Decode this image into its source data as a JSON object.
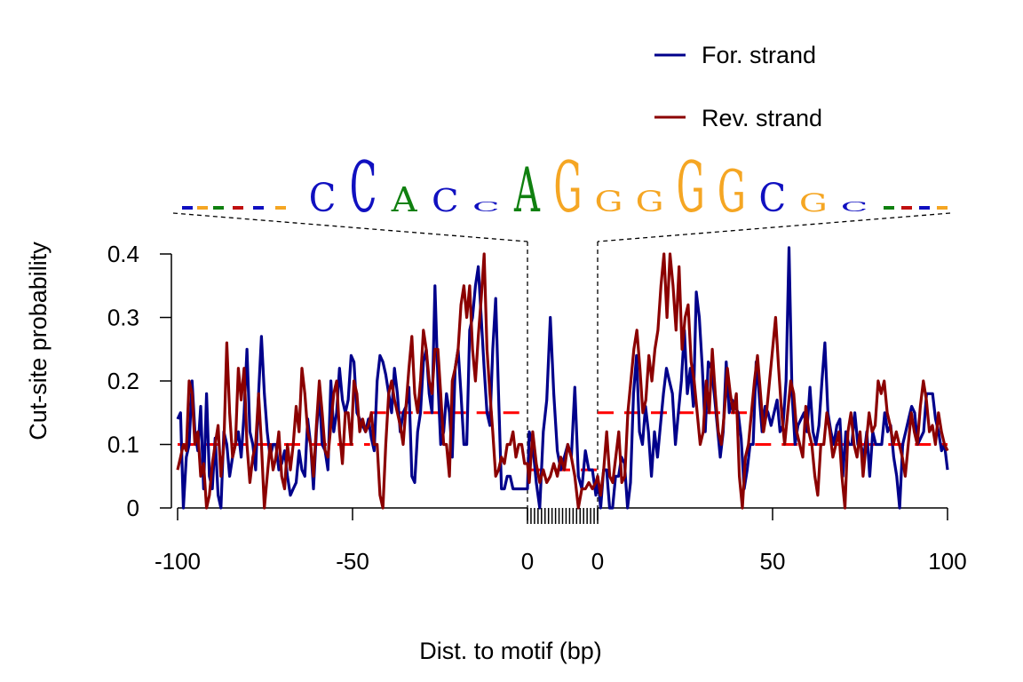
{
  "chart_data": {
    "type": "line",
    "title": "",
    "xlabel": "Dist. to motif (bp)",
    "ylabel": "Cut-site probability",
    "ylim": [
      0,
      0.4
    ],
    "yticks": [
      "0",
      "0.1",
      "0.2",
      "0.3",
      "0.4"
    ],
    "xticks_left": [
      "-100",
      "-50",
      "0"
    ],
    "xticks_right": [
      "0",
      "50",
      "100"
    ],
    "left_flank": [
      -100,
      0
    ],
    "right_flank": [
      0,
      100
    ],
    "motif_length": 20,
    "legend": {
      "position": "top-right",
      "entries": [
        {
          "label": "For. strand",
          "color": "#00008B"
        },
        {
          "label": "Rev. strand",
          "color": "#8B0000"
        }
      ]
    },
    "motif_logo": {
      "columns": [
        {
          "base": "C",
          "color": "#1010C0",
          "height": 0.35
        },
        {
          "base": "C",
          "color": "#1010C0",
          "height": 0.62
        },
        {
          "base": "A",
          "color": "#108010",
          "height": 0.3
        },
        {
          "base": "C",
          "color": "#1010C0",
          "height": 0.28
        },
        {
          "base": "C",
          "color": "#1010C0",
          "height": 0.12
        },
        {
          "base": "A",
          "color": "#108010",
          "height": 0.55
        },
        {
          "base": "G",
          "color": "#F5A623",
          "height": 0.62
        },
        {
          "base": "G",
          "color": "#F5A623",
          "height": 0.25
        },
        {
          "base": "G",
          "color": "#F5A623",
          "height": 0.25
        },
        {
          "base": "G",
          "color": "#F5A623",
          "height": 0.62
        },
        {
          "base": "G",
          "color": "#F5A623",
          "height": 0.52
        },
        {
          "base": "C",
          "color": "#1010C0",
          "height": 0.35
        },
        {
          "base": "G",
          "color": "#F5A623",
          "height": 0.22
        },
        {
          "base": "C",
          "color": "#1010C0",
          "height": 0.12
        }
      ]
    },
    "series": [
      {
        "name": "For. strand",
        "color": "#00008B",
        "left": [
          0.14,
          0.15,
          0.0,
          0.08,
          0.1,
          0.2,
          0.12,
          0.09,
          0.16,
          0.03,
          0.18,
          0.05,
          0.03,
          0.11,
          0.02,
          0.0,
          0.12,
          0.1,
          0.05,
          0.08,
          0.1,
          0.12,
          0.08,
          0.15,
          0.25,
          0.12,
          0.1,
          0.06,
          0.18,
          0.27,
          0.18,
          0.12,
          0.08,
          0.1,
          0.1,
          0.06,
          0.07,
          0.09,
          0.05,
          0.02,
          0.03,
          0.04,
          0.09,
          0.06,
          0.05,
          0.14,
          0.1,
          0.03,
          0.12,
          0.18,
          0.1,
          0.09,
          0.06,
          0.2,
          0.12,
          0.15,
          0.22,
          0.17,
          0.15,
          0.17,
          0.24,
          0.23,
          0.15,
          0.14,
          0.13,
          0.12,
          0.14,
          0.11,
          0.09,
          0.2,
          0.24,
          0.23,
          0.21,
          0.18,
          0.15,
          0.22,
          0.18,
          0.12,
          0.15,
          0.16,
          0.19,
          0.05,
          0.04,
          0.12,
          0.15,
          0.23,
          0.25,
          0.18,
          0.15,
          0.35,
          0.2,
          0.1,
          0.12,
          0.18,
          0.15,
          0.08,
          0.22,
          0.25,
          0.18,
          0.1,
          0.1,
          0.28,
          0.3,
          0.35,
          0.38,
          0.3,
          0.22,
          0.15,
          0.13,
          0.25,
          0.33,
          0.18,
          0.03,
          0.03,
          0.05,
          0.05,
          0.03,
          0.03,
          0.03,
          0.03,
          0.03,
          0.03
        ],
        "right": [
          0.05,
          0.0,
          0.06,
          0.06,
          0.0,
          0.0,
          0.05,
          0.05,
          0.08,
          0.07,
          0.0,
          0.04,
          0.18,
          0.24,
          0.12,
          0.1,
          0.16,
          0.12,
          0.05,
          0.12,
          0.08,
          0.13,
          0.18,
          0.22,
          0.2,
          0.18,
          0.1,
          0.15,
          0.2,
          0.28,
          0.18,
          0.22,
          0.16,
          0.34,
          0.3,
          0.22,
          0.12,
          0.23,
          0.22,
          0.18,
          0.13,
          0.08,
          0.12,
          0.23,
          0.15,
          0.17,
          0.16,
          0.15,
          0.11,
          0.03,
          0.06,
          0.1,
          0.1,
          0.23,
          0.18,
          0.12,
          0.16,
          0.15,
          0.13,
          0.15,
          0.17,
          0.12,
          0.13,
          0.2,
          0.41,
          0.18,
          0.1,
          0.13,
          0.14,
          0.15,
          0.12,
          0.19,
          0.12,
          0.1,
          0.13,
          0.2,
          0.26,
          0.15,
          0.12,
          0.1,
          0.13,
          0.14,
          0.05,
          0.12,
          0.1,
          0.1,
          0.15,
          0.1,
          0.1,
          0.08,
          0.12,
          0.05,
          0.12,
          0.1,
          0.1,
          0.1,
          0.15,
          0.12,
          0.13,
          0.08,
          0.05,
          0.0,
          0.1,
          0.12,
          0.14,
          0.16,
          0.15,
          0.1,
          0.11,
          0.12,
          0.18,
          0.18,
          0.18,
          0.14,
          0.12,
          0.09,
          0.1,
          0.06
        ],
        "motif": [
          0.12,
          0.1,
          0.04,
          0.0,
          0.12,
          0.17,
          0.3,
          0.18,
          0.09,
          0.06,
          0.08,
          0.1,
          0.08,
          0.19,
          0.05,
          0.03,
          0.09,
          0.06,
          0.06,
          0.02
        ]
      },
      {
        "name": "Rev. strand",
        "color": "#8B0000",
        "left": [
          0.06,
          0.08,
          0.1,
          0.09,
          0.2,
          0.18,
          0.1,
          0.12,
          0.05,
          0.07,
          0.0,
          0.02,
          0.07,
          0.1,
          0.13,
          0.05,
          0.1,
          0.26,
          0.15,
          0.08,
          0.1,
          0.22,
          0.17,
          0.22,
          0.1,
          0.04,
          0.08,
          0.1,
          0.18,
          0.1,
          0.0,
          0.05,
          0.1,
          0.06,
          0.08,
          0.12,
          0.05,
          0.03,
          0.1,
          0.06,
          0.1,
          0.16,
          0.12,
          0.22,
          0.18,
          0.12,
          0.1,
          0.05,
          0.13,
          0.2,
          0.15,
          0.09,
          0.08,
          0.13,
          0.18,
          0.2,
          0.12,
          0.07,
          0.15,
          0.15,
          0.1,
          0.2,
          0.18,
          0.12,
          0.14,
          0.12,
          0.13,
          0.15,
          0.1,
          0.1,
          0.02,
          0.0,
          0.1,
          0.18,
          0.2,
          0.17,
          0.15,
          0.13,
          0.1,
          0.16,
          0.22,
          0.27,
          0.18,
          0.15,
          0.2,
          0.28,
          0.25,
          0.2,
          0.18,
          0.25,
          0.25,
          0.18,
          0.1,
          0.1,
          0.05,
          0.2,
          0.22,
          0.25,
          0.32,
          0.35,
          0.3,
          0.35,
          0.25,
          0.2,
          0.27,
          0.33,
          0.4,
          0.25,
          0.18,
          0.12,
          0.05,
          0.06,
          0.08,
          0.07,
          0.1,
          0.1,
          0.12,
          0.08,
          0.1,
          0.1,
          0.07,
          0.07
        ],
        "right": [
          0.05,
          0.02,
          0.06,
          0.12,
          0.05,
          0.04,
          0.08,
          0.12,
          0.04,
          0.05,
          0.15,
          0.2,
          0.25,
          0.28,
          0.22,
          0.15,
          0.17,
          0.24,
          0.2,
          0.25,
          0.28,
          0.35,
          0.4,
          0.3,
          0.4,
          0.35,
          0.28,
          0.38,
          0.25,
          0.3,
          0.32,
          0.23,
          0.2,
          0.15,
          0.1,
          0.12,
          0.2,
          0.15,
          0.25,
          0.18,
          0.12,
          0.1,
          0.15,
          0.22,
          0.18,
          0.15,
          0.18,
          0.05,
          0.0,
          0.08,
          0.1,
          0.15,
          0.2,
          0.24,
          0.18,
          0.12,
          0.15,
          0.2,
          0.25,
          0.3,
          0.22,
          0.15,
          0.1,
          0.15,
          0.2,
          0.18,
          0.12,
          0.1,
          0.08,
          0.16,
          0.12,
          0.1,
          0.05,
          0.02,
          0.1,
          0.1,
          0.15,
          0.12,
          0.08,
          0.1,
          0.12,
          0.05,
          0.0,
          0.12,
          0.15,
          0.1,
          0.08,
          0.12,
          0.05,
          0.1,
          0.15,
          0.12,
          0.13,
          0.2,
          0.18,
          0.2,
          0.15,
          0.13,
          0.1,
          0.12,
          0.1,
          0.08,
          0.05,
          0.1,
          0.15,
          0.12,
          0.1,
          0.16,
          0.2,
          0.17,
          0.12,
          0.13,
          0.1,
          0.15,
          0.12,
          0.1,
          0.09
        ],
        "motif": [
          0.04,
          0.12,
          0.07,
          0.04,
          0.06,
          0.04,
          0.05,
          0.07,
          0.05,
          0.08,
          0.06,
          0.1,
          0.08,
          0.05,
          0.0,
          0.03,
          0.03,
          0.04,
          0.03,
          0.04
        ]
      }
    ],
    "background_levels": {
      "color": "#FF0000",
      "style": "dashed",
      "segments": [
        {
          "x": [
            -100,
            -45
          ],
          "y": 0.1
        },
        {
          "x": [
            -45,
            0
          ],
          "y": 0.15
        },
        {
          "x": [
            0,
            0
          ],
          "y": 0.06
        },
        {
          "x": [
            0,
            45
          ],
          "y": 0.15
        },
        {
          "x": [
            45,
            100
          ],
          "y": 0.1
        }
      ]
    }
  }
}
